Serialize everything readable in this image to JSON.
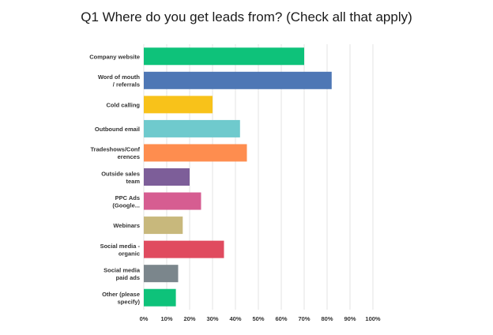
{
  "chart_data": {
    "type": "bar",
    "orientation": "horizontal",
    "title": "Q1 Where do you get leads from? (Check all that apply)",
    "categories": [
      [
        "Company website"
      ],
      [
        "Word of mouth",
        "/ referrals"
      ],
      [
        "Cold calling"
      ],
      [
        "Outbound email"
      ],
      [
        "Tradeshows/Conf",
        "erences"
      ],
      [
        "Outside sales",
        "team"
      ],
      [
        "PPC Ads",
        "(Google..."
      ],
      [
        "Webinars"
      ],
      [
        "Social media -",
        "organic"
      ],
      [
        "Social media",
        "paid ads"
      ],
      [
        "Other (please",
        "specify)"
      ]
    ],
    "values": [
      70,
      82,
      30,
      42,
      45,
      20,
      25,
      17,
      35,
      15,
      14
    ],
    "colors": [
      "#0ec27a",
      "#4e77b5",
      "#f8c21a",
      "#6fcacd",
      "#fe8d4f",
      "#7d5e99",
      "#d65d91",
      "#c8b87c",
      "#e04b5f",
      "#7b868c",
      "#0ec27a"
    ],
    "xlim": [
      0,
      100
    ],
    "xticks": [
      "0%",
      "10%",
      "20%",
      "30%",
      "40%",
      "50%",
      "60%",
      "70%",
      "80%",
      "90%",
      "100%"
    ],
    "grid": true
  }
}
